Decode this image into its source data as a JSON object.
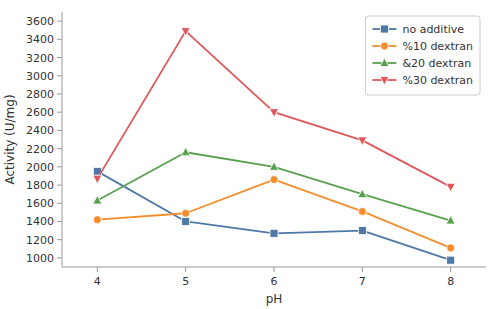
{
  "chart_data": {
    "type": "line",
    "x": [
      4,
      5,
      6,
      7,
      8
    ],
    "series": [
      {
        "name": "no additive",
        "values": [
          1950,
          1400,
          1270,
          1300,
          975
        ],
        "marker": "square"
      },
      {
        "name": "%10 dextran",
        "values": [
          1420,
          1490,
          1860,
          1510,
          1110
        ],
        "marker": "circle"
      },
      {
        "name": "&20 dextran",
        "values": [
          1630,
          2160,
          2000,
          1700,
          1410
        ],
        "marker": "triangle-up"
      },
      {
        "name": "%30 dextran",
        "values": [
          1870,
          3490,
          2600,
          2290,
          1780
        ],
        "marker": "triangle-down"
      }
    ],
    "x_label": "pH",
    "y_label": "Activity (U/mg)",
    "xlim": [
      3.6,
      8.4
    ],
    "xticks": [
      4,
      5,
      6,
      7,
      8
    ],
    "ylim": [
      900,
      3700
    ],
    "yticks": [
      1000,
      1200,
      1400,
      1600,
      1800,
      2000,
      2200,
      2400,
      2600,
      2800,
      3000,
      3200,
      3400,
      3600
    ],
    "grid": false,
    "legend": "upper right"
  }
}
